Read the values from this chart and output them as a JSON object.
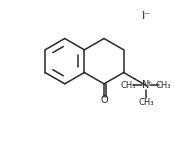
{
  "bg_color": "#ffffff",
  "line_color": "#2a2a2a",
  "text_color": "#2a2a2a",
  "line_width": 1.1,
  "font_size": 6.5,
  "iodide_text": "I⁻",
  "n_label": "N",
  "o_label": "O",
  "ch3_label": "CH₃",
  "plus_label": "+"
}
